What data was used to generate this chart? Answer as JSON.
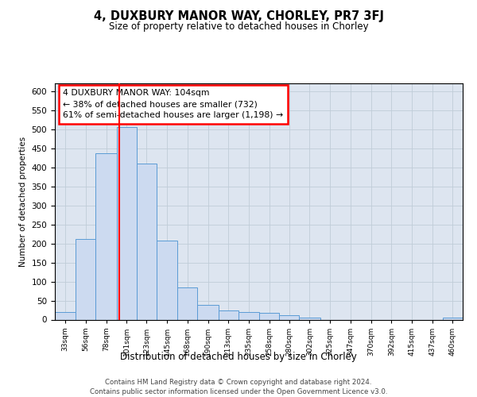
{
  "title": "4, DUXBURY MANOR WAY, CHORLEY, PR7 3FJ",
  "subtitle": "Size of property relative to detached houses in Chorley",
  "xlabel": "Distribution of detached houses by size in Chorley",
  "ylabel": "Number of detached properties",
  "footer_line1": "Contains HM Land Registry data © Crown copyright and database right 2024.",
  "footer_line2": "Contains public sector information licensed under the Open Government Licence v3.0.",
  "annotation_line1": "4 DUXBURY MANOR WAY: 104sqm",
  "annotation_line2": "← 38% of detached houses are smaller (732)",
  "annotation_line3": "61% of semi-detached houses are larger (1,198) →",
  "property_size": 104,
  "bar_color": "#ccdaf0",
  "bar_edge_color": "#5b9bd5",
  "vline_color": "red",
  "grid_color": "#c0ccd8",
  "background_color": "#dde5f0",
  "bins": [
    33,
    56,
    78,
    101,
    123,
    145,
    168,
    190,
    213,
    235,
    258,
    280,
    302,
    325,
    347,
    370,
    392,
    415,
    437,
    460,
    482
  ],
  "bar_heights": [
    20,
    212,
    437,
    505,
    410,
    207,
    85,
    38,
    23,
    20,
    18,
    11,
    5,
    0,
    0,
    0,
    0,
    0,
    0,
    5
  ],
  "ylim": [
    0,
    620
  ],
  "yticks": [
    0,
    50,
    100,
    150,
    200,
    250,
    300,
    350,
    400,
    450,
    500,
    550,
    600
  ]
}
